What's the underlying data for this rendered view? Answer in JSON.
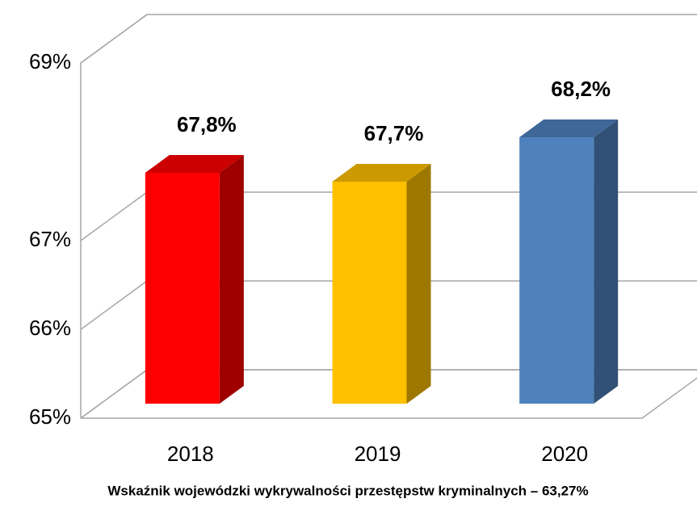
{
  "chart_data": {
    "type": "bar3d",
    "categories": [
      "2018",
      "2019",
      "2020"
    ],
    "values": [
      67.8,
      67.7,
      68.2
    ],
    "value_labels": [
      "67,8%",
      "67,7%",
      "68,2%"
    ],
    "colors": [
      "#ff0000",
      "#ffc000",
      "#4f81bd"
    ],
    "ylim": [
      65,
      69
    ],
    "yticks": [
      {
        "value": 65,
        "label": "65%"
      },
      {
        "value": 66,
        "label": "66%"
      },
      {
        "value": 67,
        "label": "67%"
      },
      {
        "value": 69,
        "label": "69%"
      }
    ],
    "grid": true,
    "caption": "Wskaźnik wojewódzki wykrywalności przestępstw kryminalnych – 63,27%"
  }
}
